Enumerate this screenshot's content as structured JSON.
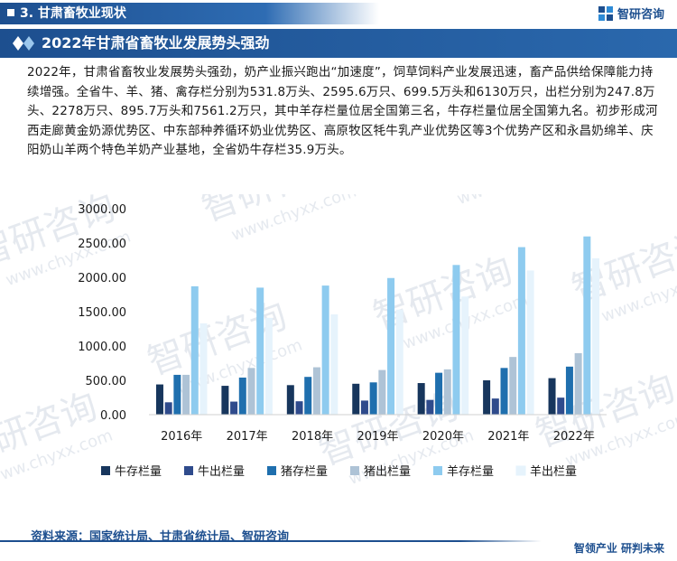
{
  "header": {
    "section_label": "3. 甘肃畜牧业现状",
    "brand_name": "智研咨询"
  },
  "title": "2022年甘肃省畜牧业发展势头强劲",
  "body_text": "2022年，甘肃省畜牧业发展势头强劲，奶产业振兴跑出“加速度”，饲草饲料产业发展迅速，畜产品供给保障能力持续增强。全省牛、羊、猪、禽存栏分别为531.8万头、2595.6万只、699.5万头和6130万只，出栏分别为247.8万头、2278万只、895.7万头和7561.2万只，其中羊存栏量位居全国第三名，牛存栏量位居全国第九名。初步形成河西走廊黄金奶源优势区、中东部种养循环奶业优势区、高原牧区牦牛乳产业优势区等3个优势产区和永昌奶绵羊、庆阳奶山羊两个特色羊奶产业基地，全省奶牛存栏35.9万头。",
  "watermark": {
    "text": "智研咨询",
    "url": "www.chyxx.com"
  },
  "chart_data": {
    "type": "bar",
    "categories": [
      "2016年",
      "2017年",
      "2018年",
      "2019年",
      "2020年",
      "2021年",
      "2022年"
    ],
    "ylim": [
      0,
      3000
    ],
    "yticks": [
      "0.00",
      "500.00",
      "1000.00",
      "1500.00",
      "2000.00",
      "2500.00",
      "3000.00"
    ],
    "legend_position": "bottom",
    "grid": false,
    "series": [
      {
        "name": "牛存栏量",
        "color": "#17365d",
        "values": [
          440,
          420,
          430,
          450,
          460,
          500,
          531.8
        ]
      },
      {
        "name": "牛出栏量",
        "color": "#2f4b8c",
        "values": [
          180,
          190,
          195,
          205,
          215,
          235,
          247.8
        ]
      },
      {
        "name": "猪存栏量",
        "color": "#1f6fae",
        "values": [
          580,
          540,
          550,
          470,
          610,
          680,
          699.5
        ]
      },
      {
        "name": "猪出栏量",
        "color": "#aec3d6",
        "values": [
          580,
          680,
          690,
          650,
          660,
          840,
          895.7
        ]
      },
      {
        "name": "羊存栏量",
        "color": "#8ecbef",
        "values": [
          1870,
          1850,
          1880,
          1990,
          2180,
          2440,
          2595.6
        ]
      },
      {
        "name": "羊出栏量",
        "color": "#e6f3fc",
        "values": [
          1330,
          1410,
          1460,
          1530,
          1720,
          2100,
          2278
        ]
      }
    ]
  },
  "footer": {
    "source": "资料来源：国家统计局、甘肃省统计局、智研咨询",
    "slogan": "智领产业 研判未来"
  }
}
